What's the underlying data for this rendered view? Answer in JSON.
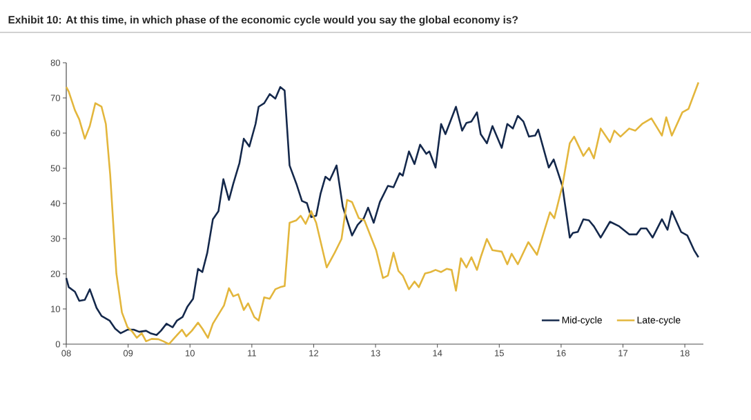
{
  "chart_data": {
    "type": "line",
    "title": "Exhibit 10: At this time, in which phase of the economic cycle would you say the global economy is?",
    "xlim": [
      8,
      18.3
    ],
    "xticks": [
      {
        "value": 8,
        "label": "08"
      },
      {
        "value": 9,
        "label": "09"
      },
      {
        "value": 10,
        "label": "10"
      },
      {
        "value": 11,
        "label": "11"
      },
      {
        "value": 12,
        "label": "12"
      },
      {
        "value": 13,
        "label": "13"
      },
      {
        "value": 14,
        "label": "14"
      },
      {
        "value": 15,
        "label": "15"
      },
      {
        "value": 16,
        "label": "16"
      },
      {
        "value": 17,
        "label": "17"
      },
      {
        "value": 18,
        "label": "18"
      }
    ],
    "ylim": [
      0,
      80
    ],
    "yticks": [
      0,
      10,
      20,
      30,
      40,
      50,
      60,
      70,
      80
    ],
    "legend": "bottom right",
    "series": [
      {
        "name": "Mid-cycle",
        "color": "#14284b",
        "x": [
          8.0,
          8.04,
          8.14,
          8.21,
          8.3,
          8.38,
          8.49,
          8.57,
          8.7,
          8.79,
          8.88,
          8.99,
          9.09,
          9.18,
          9.29,
          9.36,
          9.46,
          9.53,
          9.62,
          9.72,
          9.79,
          9.88,
          9.96,
          10.05,
          10.13,
          10.2,
          10.28,
          10.37,
          10.46,
          10.54,
          10.63,
          10.7,
          10.8,
          10.87,
          10.96,
          11.06,
          11.11,
          11.2,
          11.29,
          11.38,
          11.46,
          11.53,
          11.61,
          11.72,
          11.81,
          11.89,
          11.96,
          12.04,
          12.11,
          12.19,
          12.26,
          12.37,
          12.47,
          12.62,
          12.71,
          12.81,
          12.88,
          12.97,
          13.07,
          13.2,
          13.29,
          13.39,
          13.44,
          13.54,
          13.63,
          13.72,
          13.82,
          13.87,
          13.97,
          14.06,
          14.13,
          14.3,
          14.4,
          14.47,
          14.55,
          14.64,
          14.7,
          14.8,
          14.89,
          15.04,
          15.13,
          15.22,
          15.3,
          15.39,
          15.48,
          15.58,
          15.63,
          15.8,
          15.88,
          16.02,
          16.14,
          16.19,
          16.27,
          16.36,
          16.45,
          16.53,
          16.64,
          16.79,
          16.94,
          17.1,
          17.22,
          17.29,
          17.38,
          17.48,
          17.63,
          17.72,
          17.79,
          17.94,
          18.04,
          18.15,
          18.22
        ],
        "values": [
          18.8,
          16.2,
          14.9,
          12.3,
          12.6,
          15.6,
          10.3,
          8.0,
          6.7,
          4.4,
          3.1,
          4.1,
          4.1,
          3.5,
          3.8,
          3.1,
          2.6,
          3.8,
          5.8,
          4.8,
          6.7,
          7.7,
          10.7,
          12.9,
          21.4,
          20.5,
          26.0,
          35.5,
          37.8,
          46.9,
          41.0,
          45.6,
          51.5,
          58.4,
          56.2,
          62.6,
          67.5,
          68.5,
          71.1,
          69.8,
          73.1,
          72.1,
          50.8,
          45.6,
          40.7,
          40.1,
          36.1,
          36.5,
          42.7,
          47.6,
          46.6,
          50.8,
          39.1,
          30.9,
          33.9,
          35.8,
          38.8,
          34.5,
          40.4,
          45.0,
          44.6,
          48.6,
          47.9,
          54.8,
          51.2,
          56.7,
          54.1,
          54.8,
          50.2,
          62.6,
          59.7,
          67.5,
          60.7,
          62.9,
          63.3,
          65.9,
          59.7,
          57.1,
          62.0,
          55.8,
          62.6,
          61.3,
          64.9,
          63.3,
          59.0,
          59.3,
          61.0,
          50.2,
          52.5,
          45.0,
          30.3,
          31.6,
          31.9,
          35.5,
          35.2,
          33.5,
          30.3,
          34.8,
          33.5,
          31.2,
          31.2,
          32.9,
          32.9,
          30.3,
          35.5,
          32.5,
          37.8,
          31.9,
          30.9,
          26.7,
          24.7
        ]
      },
      {
        "name": "Late-cycle",
        "color": "#e3b63c",
        "x": [
          8.0,
          8.04,
          8.14,
          8.21,
          8.3,
          8.38,
          8.47,
          8.57,
          8.64,
          8.71,
          8.81,
          8.9,
          8.99,
          9.07,
          9.14,
          9.22,
          9.29,
          9.38,
          9.49,
          9.57,
          9.66,
          9.75,
          9.87,
          9.94,
          10.03,
          10.13,
          10.2,
          10.29,
          10.37,
          10.46,
          10.55,
          10.63,
          10.7,
          10.78,
          10.87,
          10.94,
          11.04,
          11.11,
          11.2,
          11.29,
          11.38,
          11.46,
          11.53,
          11.61,
          11.72,
          11.79,
          11.87,
          11.96,
          12.04,
          12.21,
          12.34,
          12.45,
          12.54,
          12.62,
          12.73,
          12.82,
          13.01,
          13.12,
          13.2,
          13.29,
          13.37,
          13.44,
          13.54,
          13.63,
          13.7,
          13.8,
          13.89,
          13.97,
          14.06,
          14.15,
          14.23,
          14.3,
          14.38,
          14.47,
          14.55,
          14.64,
          14.7,
          14.8,
          14.89,
          15.04,
          15.13,
          15.2,
          15.3,
          15.47,
          15.61,
          15.82,
          15.89,
          16.02,
          16.14,
          16.21,
          16.36,
          16.45,
          16.53,
          16.64,
          16.79,
          16.86,
          16.96,
          17.1,
          17.2,
          17.31,
          17.46,
          17.63,
          17.7,
          17.79,
          17.96,
          18.06,
          18.22
        ],
        "values": [
          73.1,
          71.8,
          66.5,
          63.9,
          58.4,
          62.0,
          68.5,
          67.5,
          62.6,
          48.2,
          20.1,
          9.0,
          4.8,
          3.5,
          1.8,
          3.1,
          0.8,
          1.5,
          1.4,
          0.8,
          0.0,
          1.8,
          4.1,
          2.2,
          3.8,
          6.1,
          4.4,
          1.8,
          5.8,
          8.4,
          11.0,
          15.9,
          13.6,
          14.2,
          9.7,
          11.6,
          7.7,
          6.7,
          13.3,
          12.9,
          15.6,
          16.2,
          16.5,
          34.5,
          35.2,
          36.5,
          34.2,
          37.8,
          34.5,
          21.8,
          26.0,
          29.9,
          41.0,
          40.4,
          35.8,
          35.2,
          26.7,
          18.8,
          19.5,
          26.0,
          20.8,
          19.5,
          15.6,
          17.8,
          16.2,
          20.1,
          20.5,
          21.1,
          20.5,
          21.4,
          21.1,
          15.2,
          24.4,
          21.8,
          24.7,
          21.1,
          24.7,
          29.9,
          26.7,
          26.3,
          22.7,
          25.7,
          22.7,
          29.0,
          25.4,
          37.5,
          35.8,
          45.0,
          57.1,
          59.0,
          53.5,
          55.8,
          52.8,
          61.3,
          57.4,
          60.7,
          59.0,
          61.3,
          60.7,
          62.6,
          64.2,
          59.3,
          64.5,
          59.3,
          65.9,
          66.9,
          74.4
        ]
      }
    ]
  }
}
